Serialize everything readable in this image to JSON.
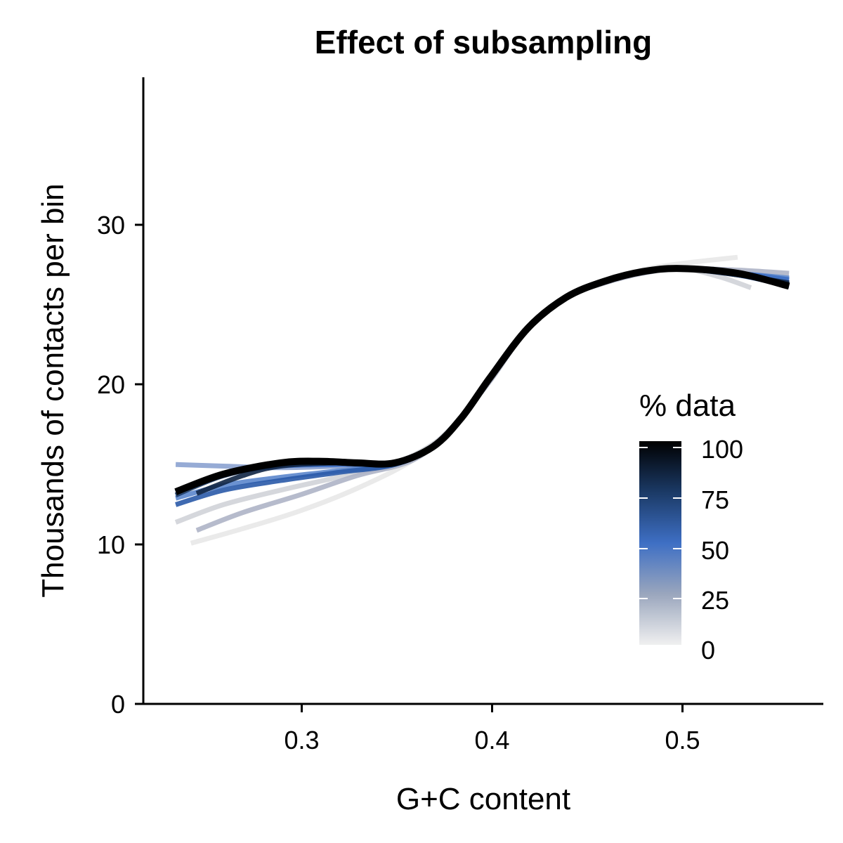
{
  "chart_data": {
    "type": "line",
    "title": "Effect of subsampling",
    "xlabel": "G+C content",
    "ylabel": "Thousands of contacts per bin",
    "xlim": [
      0.218,
      0.575
    ],
    "ylim": [
      0,
      39
    ],
    "x_ticks": [
      "0.3",
      "0.4",
      "0.5"
    ],
    "y_ticks": [
      "0",
      "10",
      "20",
      "30"
    ],
    "grid": false,
    "legend": {
      "title": "% data",
      "position": "right-center",
      "labels": [
        "100",
        "75",
        "50",
        "25",
        "0"
      ],
      "colors": [
        "#000000",
        "#1b3a66",
        "#3e6fc4",
        "#9aa6bd",
        "#f0f0f0"
      ]
    },
    "series": [
      {
        "pct": 5,
        "color": "#e8e8e8",
        "points": [
          [
            0.243,
            10.0
          ],
          [
            0.27,
            10.9
          ],
          [
            0.3,
            12.0
          ],
          [
            0.33,
            13.4
          ],
          [
            0.36,
            15.2
          ],
          [
            0.38,
            17.2
          ],
          [
            0.4,
            20.2
          ],
          [
            0.42,
            23.3
          ],
          [
            0.44,
            25.3
          ],
          [
            0.46,
            26.2
          ],
          [
            0.48,
            27.0
          ],
          [
            0.5,
            27.4
          ],
          [
            0.53,
            27.8
          ]
        ]
      },
      {
        "pct": 15,
        "color": "#d0d3d8",
        "points": [
          [
            0.235,
            11.3
          ],
          [
            0.26,
            12.4
          ],
          [
            0.29,
            13.3
          ],
          [
            0.32,
            14.1
          ],
          [
            0.345,
            14.8
          ],
          [
            0.365,
            15.8
          ],
          [
            0.38,
            17.2
          ],
          [
            0.4,
            20.1
          ],
          [
            0.42,
            23.4
          ],
          [
            0.44,
            25.3
          ],
          [
            0.46,
            26.2
          ],
          [
            0.48,
            26.8
          ],
          [
            0.5,
            27.1
          ],
          [
            0.52,
            26.6
          ],
          [
            0.537,
            25.9
          ]
        ]
      },
      {
        "pct": 25,
        "color": "#aeb4c6",
        "points": [
          [
            0.246,
            10.8
          ],
          [
            0.27,
            11.9
          ],
          [
            0.3,
            13.0
          ],
          [
            0.33,
            14.2
          ],
          [
            0.36,
            15.2
          ],
          [
            0.38,
            17.2
          ],
          [
            0.4,
            20.1
          ],
          [
            0.42,
            23.4
          ],
          [
            0.44,
            25.3
          ],
          [
            0.46,
            26.2
          ],
          [
            0.48,
            26.8
          ],
          [
            0.5,
            27.1
          ],
          [
            0.53,
            27.0
          ],
          [
            0.557,
            26.8
          ]
        ]
      },
      {
        "pct": 35,
        "color": "#8ba2d0",
        "points": [
          [
            0.235,
            14.9
          ],
          [
            0.26,
            14.8
          ],
          [
            0.29,
            14.7
          ],
          [
            0.32,
            14.8
          ],
          [
            0.35,
            15.0
          ],
          [
            0.37,
            16.0
          ],
          [
            0.385,
            17.8
          ],
          [
            0.4,
            20.3
          ],
          [
            0.42,
            23.4
          ],
          [
            0.44,
            25.3
          ],
          [
            0.46,
            26.3
          ],
          [
            0.48,
            26.9
          ],
          [
            0.5,
            27.1
          ],
          [
            0.53,
            26.8
          ],
          [
            0.557,
            26.4
          ]
        ]
      },
      {
        "pct": 45,
        "color": "#5b86cc",
        "points": [
          [
            0.235,
            12.8
          ],
          [
            0.26,
            13.6
          ],
          [
            0.29,
            14.1
          ],
          [
            0.32,
            14.5
          ],
          [
            0.35,
            14.9
          ],
          [
            0.37,
            16.0
          ],
          [
            0.385,
            17.8
          ],
          [
            0.4,
            20.3
          ],
          [
            0.42,
            23.4
          ],
          [
            0.44,
            25.3
          ],
          [
            0.46,
            26.3
          ],
          [
            0.48,
            26.9
          ],
          [
            0.5,
            27.1
          ],
          [
            0.53,
            26.8
          ],
          [
            0.557,
            26.5
          ]
        ]
      },
      {
        "pct": 55,
        "color": "#3e6fc4",
        "points": [
          [
            0.235,
            13.2
          ],
          [
            0.26,
            14.3
          ],
          [
            0.29,
            14.8
          ],
          [
            0.32,
            14.9
          ],
          [
            0.35,
            15.0
          ],
          [
            0.37,
            16.0
          ],
          [
            0.385,
            17.8
          ],
          [
            0.4,
            20.3
          ],
          [
            0.42,
            23.4
          ],
          [
            0.44,
            25.3
          ],
          [
            0.46,
            26.3
          ],
          [
            0.48,
            26.9
          ],
          [
            0.5,
            27.1
          ],
          [
            0.53,
            26.8
          ],
          [
            0.557,
            26.4
          ]
        ]
      },
      {
        "pct": 65,
        "color": "#2a5aa8",
        "points": [
          [
            0.235,
            12.4
          ],
          [
            0.26,
            13.3
          ],
          [
            0.29,
            13.9
          ],
          [
            0.32,
            14.4
          ],
          [
            0.35,
            14.9
          ],
          [
            0.37,
            16.0
          ],
          [
            0.385,
            17.8
          ],
          [
            0.4,
            20.3
          ],
          [
            0.42,
            23.4
          ],
          [
            0.44,
            25.3
          ],
          [
            0.46,
            26.3
          ],
          [
            0.48,
            26.9
          ],
          [
            0.5,
            27.1
          ],
          [
            0.53,
            26.7
          ],
          [
            0.557,
            26.0
          ]
        ]
      },
      {
        "pct": 75,
        "color": "#1b3a66",
        "points": [
          [
            0.235,
            13.0
          ],
          [
            0.26,
            14.2
          ],
          [
            0.29,
            14.9
          ],
          [
            0.32,
            15.0
          ],
          [
            0.35,
            15.0
          ],
          [
            0.37,
            16.0
          ],
          [
            0.385,
            17.8
          ],
          [
            0.4,
            20.3
          ],
          [
            0.42,
            23.4
          ],
          [
            0.44,
            25.3
          ],
          [
            0.46,
            26.3
          ],
          [
            0.48,
            26.9
          ],
          [
            0.5,
            27.1
          ],
          [
            0.53,
            26.7
          ],
          [
            0.557,
            26.1
          ]
        ]
      },
      {
        "pct": 85,
        "color": "#0f2544",
        "points": [
          [
            0.246,
            13.1
          ],
          [
            0.27,
            14.2
          ],
          [
            0.29,
            14.8
          ],
          [
            0.32,
            15.0
          ],
          [
            0.35,
            15.0
          ],
          [
            0.37,
            16.0
          ],
          [
            0.385,
            17.8
          ],
          [
            0.4,
            20.3
          ],
          [
            0.42,
            23.4
          ],
          [
            0.44,
            25.3
          ],
          [
            0.46,
            26.3
          ],
          [
            0.48,
            26.9
          ],
          [
            0.5,
            27.1
          ],
          [
            0.53,
            26.7
          ],
          [
            0.557,
            26.2
          ]
        ]
      },
      {
        "pct": 100,
        "color": "#000000",
        "points": [
          [
            0.235,
            13.2
          ],
          [
            0.26,
            14.3
          ],
          [
            0.29,
            15.0
          ],
          [
            0.31,
            15.1
          ],
          [
            0.33,
            15.0
          ],
          [
            0.35,
            15.0
          ],
          [
            0.37,
            16.0
          ],
          [
            0.385,
            17.8
          ],
          [
            0.4,
            20.3
          ],
          [
            0.42,
            23.4
          ],
          [
            0.44,
            25.3
          ],
          [
            0.46,
            26.3
          ],
          [
            0.48,
            26.9
          ],
          [
            0.5,
            27.1
          ],
          [
            0.53,
            26.8
          ],
          [
            0.557,
            26.0
          ]
        ]
      }
    ]
  }
}
